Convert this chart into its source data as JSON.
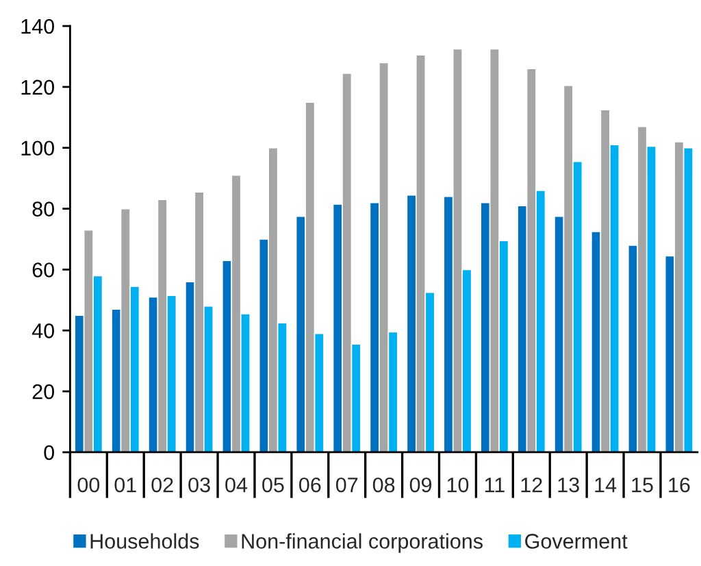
{
  "chart_data": {
    "type": "bar",
    "categories": [
      "00",
      "01",
      "02",
      "03",
      "04",
      "05",
      "06",
      "07",
      "08",
      "09",
      "10",
      "11",
      "12",
      "13",
      "14",
      "15",
      "16"
    ],
    "series": [
      {
        "name": "Households",
        "color": "#0070c0",
        "values": [
          45,
          47,
          51,
          56,
          63,
          70,
          77.5,
          81.5,
          82,
          84.5,
          84,
          82,
          81,
          77.5,
          72.5,
          68,
          64.5
        ]
      },
      {
        "name": "Non-financial corporations",
        "color": "#a5a5a5",
        "values": [
          73,
          80,
          83,
          85.5,
          91,
          100,
          115,
          124.5,
          128,
          130.5,
          132.5,
          132.5,
          126,
          120.5,
          112.5,
          107,
          102
        ]
      },
      {
        "name": "Goverment",
        "color": "#00b0f0",
        "values": [
          58,
          54.5,
          51.5,
          48,
          45.5,
          42.5,
          39,
          35.5,
          39.5,
          52.5,
          60,
          69.5,
          86,
          95.5,
          101,
          100.5,
          100
        ]
      }
    ],
    "ylim": [
      0,
      140
    ],
    "yticks": [
      0,
      20,
      40,
      60,
      80,
      100,
      120,
      140
    ],
    "legend": "bottom"
  }
}
